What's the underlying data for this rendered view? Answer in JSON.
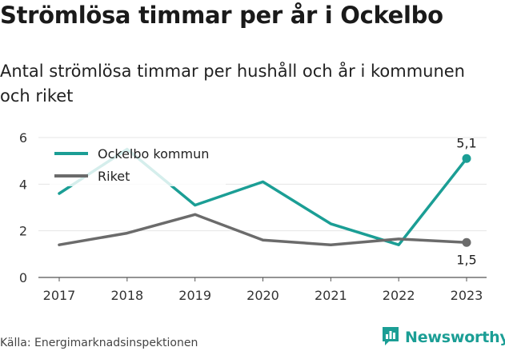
{
  "title": "Strömlösa timmar per år i Ockelbo",
  "subtitle": "Antal strömlösa timmar per hushåll och år i kommunen och riket",
  "source": "Källa: Energimarknadsinspektionen",
  "brand": {
    "name": "Newsworthy",
    "logo_icon": "bar-chart-icon",
    "color": "#1b9e95"
  },
  "chart_data": {
    "type": "line",
    "title": "Strömlösa timmar per år i Ockelbo",
    "subtitle": "Antal strömlösa timmar per hushåll och år i kommunen och riket",
    "x": [
      2017,
      2018,
      2019,
      2020,
      2021,
      2022,
      2023
    ],
    "x_tick_labels": [
      "2017",
      "2018",
      "2019",
      "2020",
      "2021",
      "2022",
      "2023"
    ],
    "ylim": [
      0,
      6
    ],
    "y_ticks": [
      0,
      2,
      4,
      6
    ],
    "y_tick_labels": [
      "0",
      "2",
      "4",
      "6"
    ],
    "grid": true,
    "legend_position": "top-left",
    "series": [
      {
        "name": "Ockelbo kommun",
        "color": "#1b9e95",
        "values": [
          3.6,
          5.5,
          3.1,
          4.1,
          2.3,
          1.4,
          5.1
        ],
        "end_label": "5,1"
      },
      {
        "name": "Riket",
        "color": "#6b6b6b",
        "values": [
          1.4,
          1.9,
          2.7,
          1.6,
          1.4,
          1.65,
          1.5
        ],
        "end_label": "1,5"
      }
    ]
  }
}
